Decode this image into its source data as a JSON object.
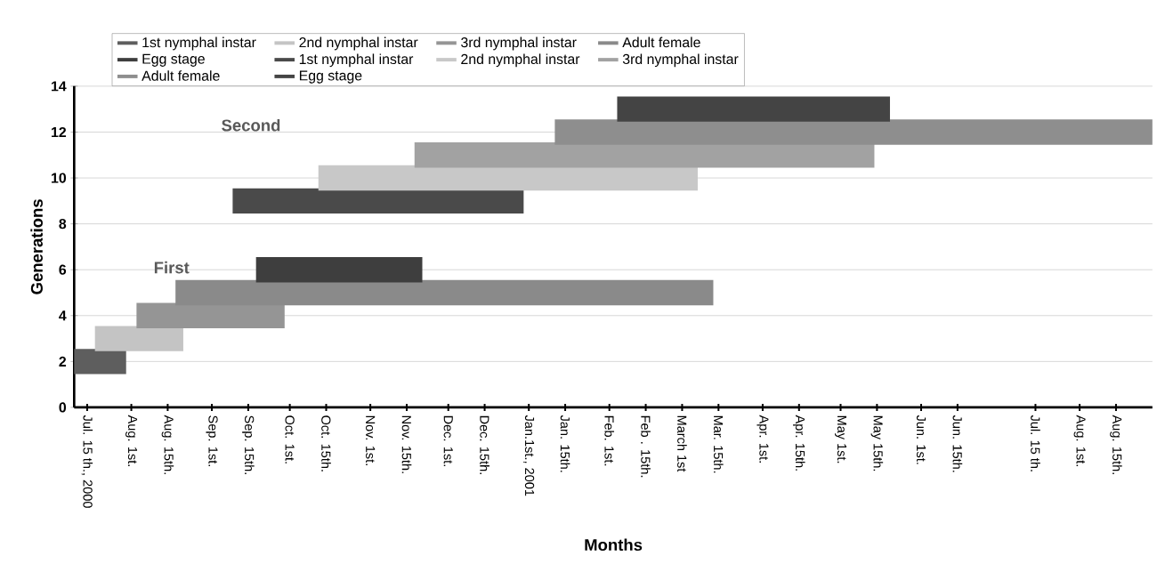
{
  "chart_data": {
    "type": "line",
    "xlabel": "Months",
    "ylabel": "Generations",
    "ylim": [
      0,
      14
    ],
    "yticks": [
      0,
      2,
      4,
      6,
      8,
      10,
      12,
      14
    ],
    "xlim": [
      "2000-07-10",
      "2001-08-29"
    ],
    "xticks": [
      {
        "value": "2000-07-15",
        "label": "Jul. 15 th., 2000"
      },
      {
        "value": "2000-08-01",
        "label": "Aug. 1st."
      },
      {
        "value": "2000-08-15",
        "label": "Aug. 15th."
      },
      {
        "value": "2000-09-01",
        "label": "Sep. 1st."
      },
      {
        "value": "2000-09-15",
        "label": "Sep. 15th."
      },
      {
        "value": "2000-10-01",
        "label": "Oct. 1st."
      },
      {
        "value": "2000-10-15",
        "label": "Oct. 15th."
      },
      {
        "value": "2000-11-01",
        "label": "Nov. 1st."
      },
      {
        "value": "2000-11-15",
        "label": "Nov. 15th."
      },
      {
        "value": "2000-12-01",
        "label": "Dec. 1st."
      },
      {
        "value": "2000-12-15",
        "label": "Dec. 15th."
      },
      {
        "value": "2001-01-01",
        "label": "Jan.1st., 2001"
      },
      {
        "value": "2001-01-15",
        "label": "Jan. 15th."
      },
      {
        "value": "2001-02-01",
        "label": "Feb. 1st."
      },
      {
        "value": "2001-02-15",
        "label": "Feb . 15th."
      },
      {
        "value": "2001-03-01",
        "label": "March 1st"
      },
      {
        "value": "2001-03-15",
        "label": "Mar. 15th."
      },
      {
        "value": "2001-04-01",
        "label": "Apr. 1st."
      },
      {
        "value": "2001-04-15",
        "label": "Apr. 15th."
      },
      {
        "value": "2001-05-01",
        "label": "May 1st."
      },
      {
        "value": "2001-05-15",
        "label": "May 15th."
      },
      {
        "value": "2001-06-01",
        "label": "Jun. 1st."
      },
      {
        "value": "2001-06-15",
        "label": "Jun. 15th."
      },
      {
        "value": "2001-07-15",
        "label": "Jul. 15 th."
      },
      {
        "value": "2001-08-01",
        "label": "Aug. 1st."
      },
      {
        "value": "2001-08-15",
        "label": "Aug. 15th."
      }
    ],
    "grid": "y",
    "legend": "top",
    "annotations": [
      "First",
      "Second"
    ],
    "series": [
      {
        "name": "1st nymphal instar",
        "color": "#5e5e5e",
        "x": [
          "2000-07-10",
          "2000-07-30"
        ],
        "values": [
          2,
          2
        ]
      },
      {
        "name": "2nd nymphal instar",
        "color": "#c4c4c4",
        "x": [
          "2000-07-18",
          "2000-08-21"
        ],
        "values": [
          3,
          3
        ]
      },
      {
        "name": "3rd nymphal instar",
        "color": "#959595",
        "x": [
          "2000-08-03",
          "2000-09-29"
        ],
        "values": [
          4,
          4
        ]
      },
      {
        "name": "Adult female",
        "color": "#8a8a8a",
        "x": [
          "2000-08-18",
          "2001-03-13"
        ],
        "values": [
          5,
          5
        ]
      },
      {
        "name": "Egg stage",
        "color": "#3e3e3e",
        "x": [
          "2000-09-18",
          "2000-11-21"
        ],
        "values": [
          6,
          6
        ]
      },
      {
        "name": "1st nymphal instar",
        "color": "#4a4a4a",
        "x": [
          "2000-09-09",
          "2000-12-30"
        ],
        "values": [
          9,
          9
        ]
      },
      {
        "name": "2nd nymphal instar",
        "color": "#c8c8c8",
        "x": [
          "2000-10-12",
          "2001-03-07"
        ],
        "values": [
          10,
          10
        ]
      },
      {
        "name": "3rd nymphal instar",
        "color": "#a2a2a2",
        "x": [
          "2000-11-18",
          "2001-05-14"
        ],
        "values": [
          11,
          11
        ]
      },
      {
        "name": "Adult female",
        "color": "#8e8e8e",
        "x": [
          "2001-01-11",
          "2001-08-29"
        ],
        "values": [
          12,
          12
        ]
      },
      {
        "name": "Egg stage",
        "color": "#444444",
        "x": [
          "2001-02-04",
          "2001-05-20"
        ],
        "values": [
          13,
          13
        ]
      }
    ]
  }
}
